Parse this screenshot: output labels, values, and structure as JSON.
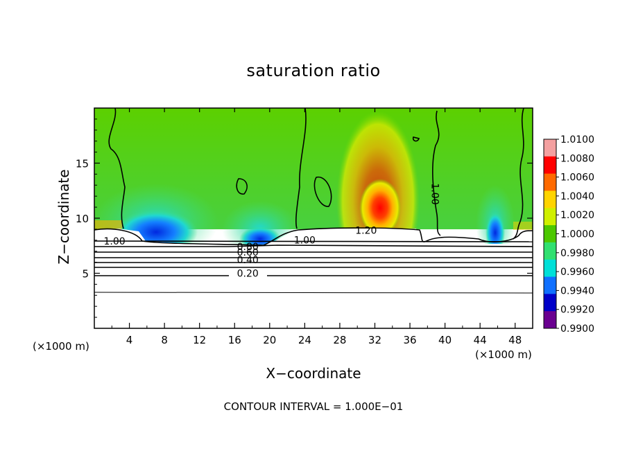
{
  "chart_data": {
    "type": "heatmap",
    "title": "saturation ratio",
    "xlabel": "X−coordinate",
    "ylabel": "Z−coordinate",
    "x_unit": "(×1000 m)",
    "x_unit_right": "(×1000 m)",
    "xlim": [
      0,
      50
    ],
    "ylim": [
      0,
      20
    ],
    "x_ticks": [
      4,
      8,
      12,
      16,
      20,
      24,
      28,
      32,
      36,
      40,
      44,
      48
    ],
    "y_ticks": [
      5,
      10,
      15
    ],
    "colorbar": {
      "vmin": 0.99,
      "vmax": 1.01,
      "tick_labels": [
        "1.0100",
        "1.0080",
        "1.0060",
        "1.0040",
        "1.0020",
        "1.0000",
        "0.9980",
        "0.9960",
        "0.9940",
        "0.9920",
        "0.9900"
      ],
      "tick_values": [
        1.01,
        1.008,
        1.006,
        1.004,
        1.002,
        1.0,
        0.998,
        0.996,
        0.994,
        0.992,
        0.99
      ],
      "colors": [
        "#f4a0a0",
        "#ff0000",
        "#ff6a00",
        "#ffd400",
        "#d0f000",
        "#4cc800",
        "#30e070",
        "#00e0d8",
        "#1070ff",
        "#0000c8",
        "#6a0090"
      ]
    },
    "contour_labels": [
      {
        "text": "1.00",
        "x": 2.3,
        "z": 7.6
      },
      {
        "text": "0.80",
        "x": 17.5,
        "z": 7.1
      },
      {
        "text": "0.60",
        "x": 17.5,
        "z": 6.6
      },
      {
        "text": "0.40",
        "x": 17.5,
        "z": 5.9
      },
      {
        "text": "0.20",
        "x": 17.5,
        "z": 4.7
      },
      {
        "text": "1.00",
        "x": 24.0,
        "z": 7.7
      },
      {
        "text": "1.20",
        "x": 31.0,
        "z": 8.6
      },
      {
        "text": "1.00",
        "x": 38.5,
        "z": 12.2
      }
    ],
    "contour_interval_label": "CONTOUR INTERVAL = 1.000E−01"
  }
}
